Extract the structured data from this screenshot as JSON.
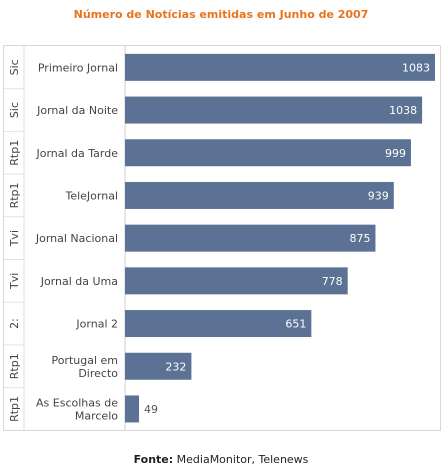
{
  "chart_data": {
    "type": "bar",
    "orientation": "horizontal",
    "title": "Número de Notícias emitidas em Junho de 2007",
    "groups": [
      "Sic",
      "Sic",
      "Rtp1",
      "Rtp1",
      "Tvi",
      "Tvi",
      "2:",
      "Rtp1",
      "Rtp1"
    ],
    "categories": [
      "Primeiro Jornal",
      "Jornal da Noite",
      "Jornal da Tarde",
      "TeleJornal",
      "Jornal Nacional",
      "Jornal da Uma",
      "Jornal 2",
      "Portugal em Directo",
      "As Escolhas de Marcelo"
    ],
    "values": [
      1083,
      1038,
      999,
      939,
      875,
      778,
      651,
      232,
      49
    ],
    "bar_color": "#5b7294",
    "grid": false
  },
  "footer": {
    "label": "Fonte:",
    "text": "MediaMonitor, Telenews"
  }
}
